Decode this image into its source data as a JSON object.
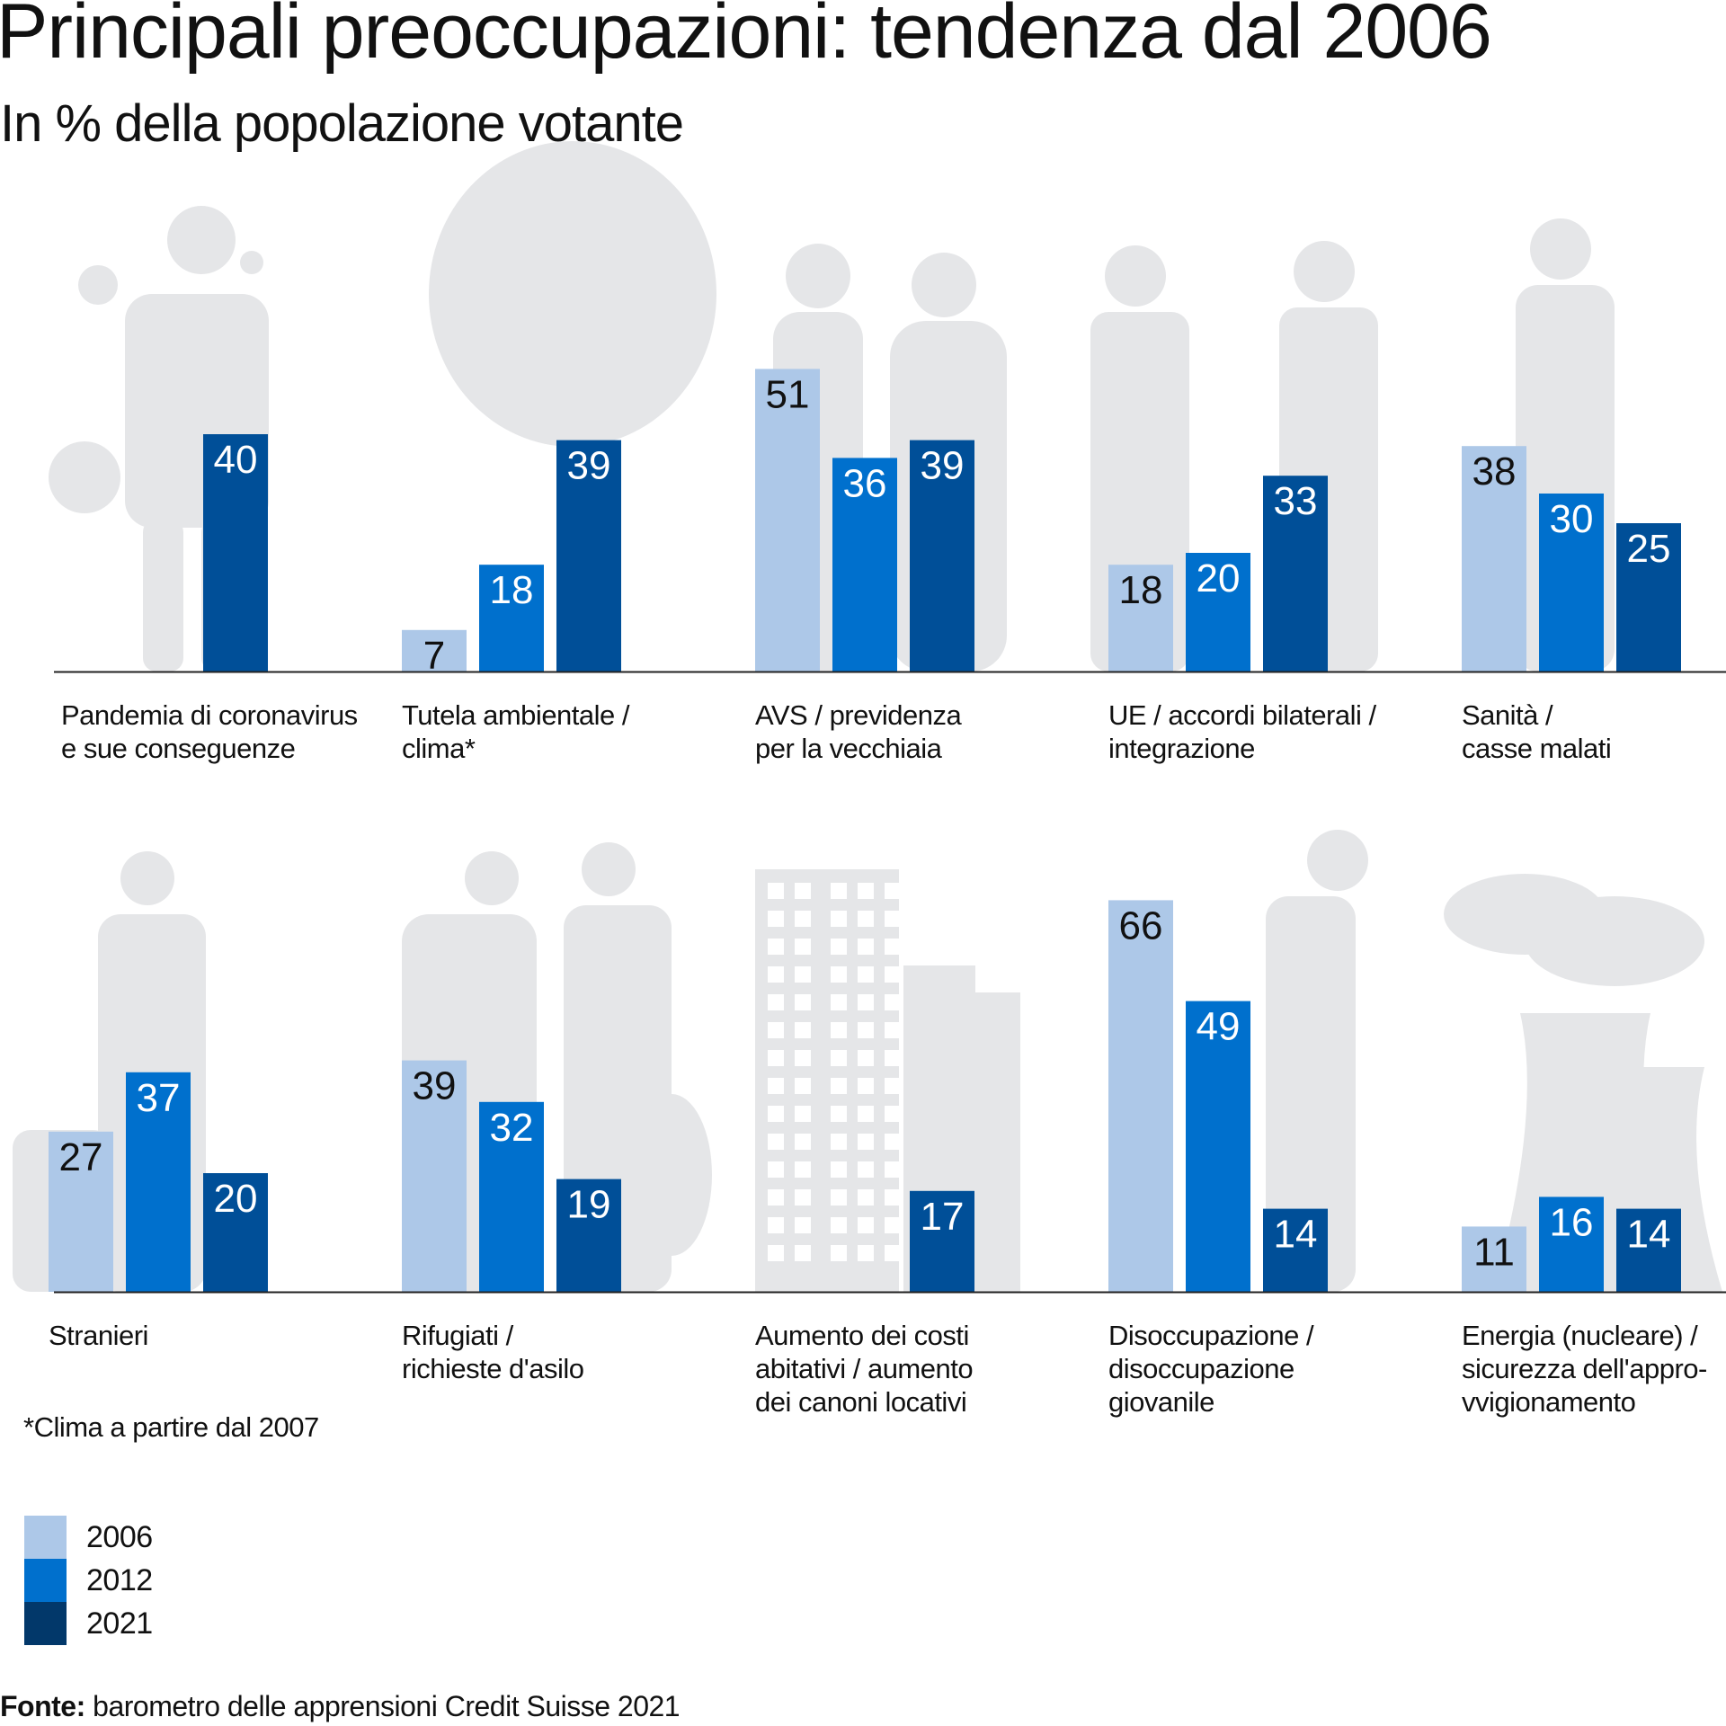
{
  "title": "Principali preoccupazioni: tendenza dal 2006",
  "subtitle": "In % della popolazione votante",
  "footnote": "*Clima a partire dal 2007",
  "source_label": "Fonte:",
  "source_text": "barometro delle apprensioni Credit Suisse 2021",
  "colors": {
    "2006": "#adc8e8",
    "2012": "#0070cd",
    "2021": "#004f98",
    "legend2021": "#02386a",
    "silhouette": "#e5e6e8"
  },
  "chart_data": {
    "type": "bar",
    "title": "Principali preoccupazioni: tendenza dal 2006",
    "ylabel": "In % della popolazione votante",
    "series_names": [
      "2006",
      "2012",
      "2021"
    ],
    "legend_position": "bottom-left",
    "categories": [
      {
        "label": "Pandemia di coronavirus\ne sue conseguenze",
        "values": [
          null,
          null,
          40
        ],
        "illustration": "doctor-virus"
      },
      {
        "label": "Tutela ambientale /\nclima*",
        "values": [
          7,
          18,
          39
        ],
        "illustration": "tree"
      },
      {
        "label": "AVS / previdenza\nper la vecchiaia",
        "values": [
          51,
          36,
          39
        ],
        "illustration": "elderly-couple"
      },
      {
        "label": "UE / accordi bilaterali /\nintegrazione",
        "values": [
          18,
          20,
          33
        ],
        "illustration": "handshake"
      },
      {
        "label": "Sanità /\ncasse malati",
        "values": [
          38,
          30,
          25
        ],
        "illustration": "doctor"
      },
      {
        "label": "Stranieri",
        "values": [
          27,
          37,
          20
        ],
        "illustration": "traveler"
      },
      {
        "label": "Rifugiati /\nrichieste d'asilo",
        "values": [
          39,
          32,
          19
        ],
        "illustration": "refugees"
      },
      {
        "label": "Aumento dei costi\nabitativi / aumento\ndei canoni locativi",
        "values": [
          null,
          null,
          17
        ],
        "illustration": "buildings"
      },
      {
        "label": "Disoccupazione /\ndisoccupazione\ngiovanile",
        "values": [
          66,
          49,
          14
        ],
        "illustration": "sad-man"
      },
      {
        "label": "Energia (nucleare) /\nsicurezza dell'appro-\nvvigionamento",
        "values": [
          11,
          16,
          14
        ],
        "illustration": "nuclear-plant"
      }
    ]
  }
}
